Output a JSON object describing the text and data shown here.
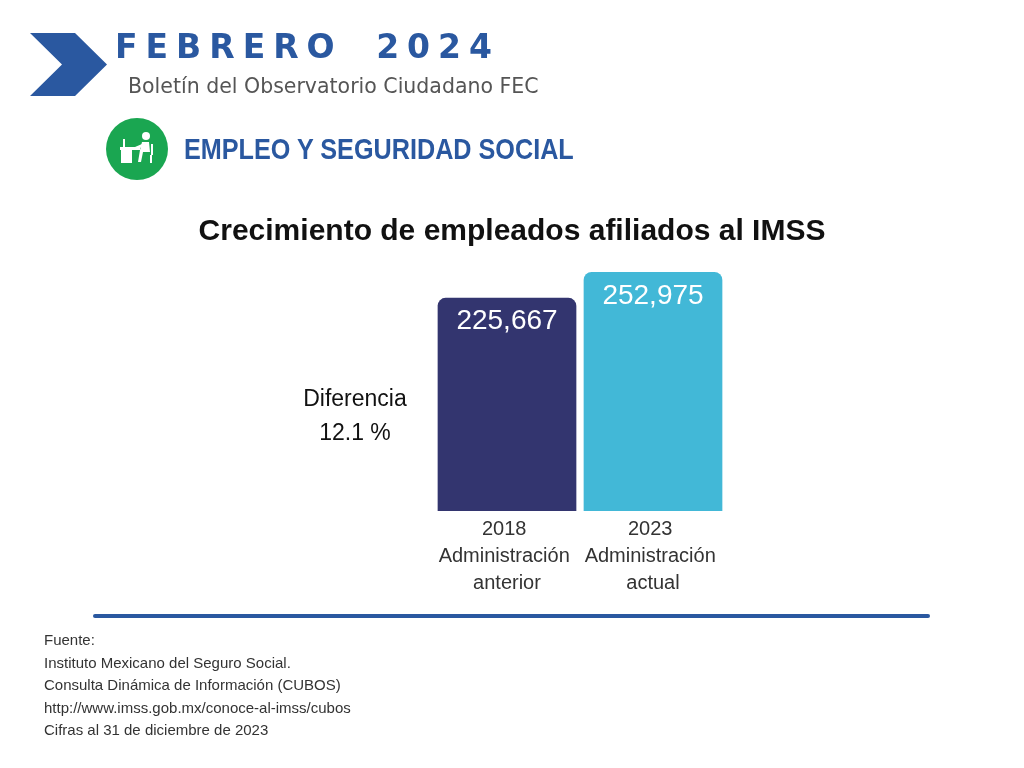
{
  "chart_data": {
    "type": "bar",
    "title": "Crecimiento de empleados afiliados al IMSS",
    "categories": [
      "2018 Administración anterior",
      "2023 Administración actual"
    ],
    "values": [
      225667,
      252975
    ],
    "colors": [
      "#33356f",
      "#42b8d7"
    ],
    "value_labels": [
      "225,667",
      "252,975"
    ],
    "grid": false,
    "tick_labels": "x",
    "annotations": [
      "FEBRERO 2024",
      "Boletín del Observatorio Ciudadano FEC",
      "EMPLEO Y SEGURIDAD SOCIAL",
      "Diferencia 12.1 %",
      "Fuente:",
      "Instituto Mexicano del Seguro Social.",
      "Consulta Dinámica de Información (CUBOS)",
      "http://www.imss.gob.mx/conoce-al-imss/cubos",
      "Cifras al 31 de diciembre de 2023"
    ]
  }
}
